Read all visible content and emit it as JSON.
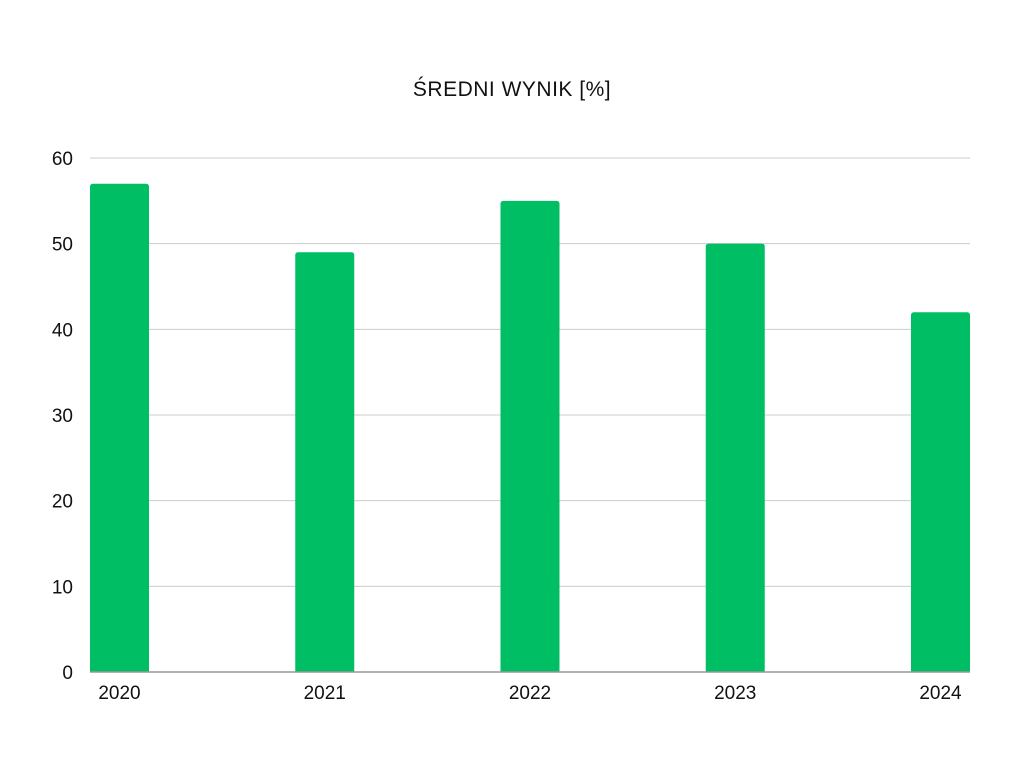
{
  "chart_data": {
    "type": "bar",
    "title": "ŚREDNI WYNIK [%]",
    "xlabel": "",
    "ylabel": "",
    "categories": [
      "2020",
      "2021",
      "2022",
      "2023",
      "2024"
    ],
    "values": [
      57,
      49,
      55,
      50,
      42
    ],
    "ylim": [
      0,
      60
    ],
    "yticks": [
      0,
      10,
      20,
      30,
      40,
      50,
      60
    ],
    "grid": true,
    "legend": "none",
    "bar_color": "#00BE63",
    "grid_color": "#cccccc",
    "axis_color": "#999999"
  }
}
